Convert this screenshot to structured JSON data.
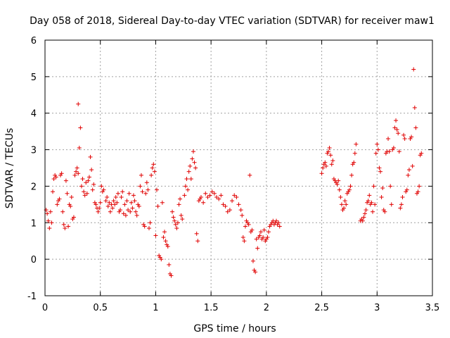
{
  "chart_data": {
    "type": "scatter",
    "title": "Day 058 of 2018, Sidereal Day-to-day VTEC variation (SDTVAR) for receiver maw1",
    "xlabel": "GPS time / hours",
    "ylabel": "SDTVAR / TECUs",
    "xlim": [
      0,
      3.5
    ],
    "ylim": [
      -1,
      6
    ],
    "xticks": [
      0,
      0.5,
      1,
      1.5,
      2,
      2.5,
      3,
      3.5
    ],
    "xtick_labels": [
      "0",
      "0.5",
      "1",
      "1.5",
      "2",
      "2.5",
      "3",
      "3.5"
    ],
    "yticks": [
      -1,
      0,
      1,
      2,
      3,
      4,
      5,
      6
    ],
    "ytick_labels": [
      "-1",
      "0",
      "1",
      "2",
      "3",
      "4",
      "5",
      "6"
    ],
    "grid": true,
    "marker": "+",
    "color": "#e00000",
    "series": [
      {
        "name": "maw1",
        "points": [
          [
            0.01,
            1.35
          ],
          [
            0.02,
            1.25
          ],
          [
            0.03,
            1.05
          ],
          [
            0.04,
            0.85
          ],
          [
            0.05,
            1.3
          ],
          [
            0.06,
            1.0
          ],
          [
            0.07,
            1.85
          ],
          [
            0.08,
            2.2
          ],
          [
            0.09,
            2.3
          ],
          [
            0.1,
            2.25
          ],
          [
            0.11,
            1.5
          ],
          [
            0.12,
            1.6
          ],
          [
            0.13,
            1.65
          ],
          [
            0.14,
            2.3
          ],
          [
            0.15,
            2.35
          ],
          [
            0.16,
            1.3
          ],
          [
            0.17,
            0.95
          ],
          [
            0.18,
            0.85
          ],
          [
            0.19,
            2.15
          ],
          [
            0.2,
            1.8
          ],
          [
            0.21,
            0.9
          ],
          [
            0.22,
            1.5
          ],
          [
            0.23,
            1.45
          ],
          [
            0.24,
            1.7
          ],
          [
            0.25,
            1.1
          ],
          [
            0.26,
            1.15
          ],
          [
            0.27,
            2.3
          ],
          [
            0.28,
            2.4
          ],
          [
            0.29,
            2.5
          ],
          [
            0.3,
            2.35
          ],
          [
            0.3,
            4.25
          ],
          [
            0.31,
            3.05
          ],
          [
            0.32,
            3.6
          ],
          [
            0.33,
            2.0
          ],
          [
            0.34,
            2.2
          ],
          [
            0.35,
            1.85
          ],
          [
            0.36,
            1.75
          ],
          [
            0.37,
            2.1
          ],
          [
            0.38,
            1.8
          ],
          [
            0.39,
            2.15
          ],
          [
            0.4,
            2.25
          ],
          [
            0.41,
            2.8
          ],
          [
            0.42,
            2.45
          ],
          [
            0.43,
            1.9
          ],
          [
            0.44,
            2.05
          ],
          [
            0.45,
            1.55
          ],
          [
            0.46,
            1.5
          ],
          [
            0.47,
            1.4
          ],
          [
            0.48,
            1.3
          ],
          [
            0.49,
            1.4
          ],
          [
            0.5,
            1.55
          ],
          [
            0.51,
            2.0
          ],
          [
            0.52,
            1.85
          ],
          [
            0.53,
            1.9
          ],
          [
            0.55,
            1.6
          ],
          [
            0.56,
            1.7
          ],
          [
            0.57,
            1.45
          ],
          [
            0.58,
            1.55
          ],
          [
            0.59,
            1.3
          ],
          [
            0.6,
            1.5
          ],
          [
            0.61,
            1.4
          ],
          [
            0.62,
            1.6
          ],
          [
            0.63,
            1.5
          ],
          [
            0.64,
            1.7
          ],
          [
            0.65,
            1.55
          ],
          [
            0.66,
            1.8
          ],
          [
            0.67,
            1.3
          ],
          [
            0.68,
            1.35
          ],
          [
            0.69,
            1.7
          ],
          [
            0.7,
            1.85
          ],
          [
            0.71,
            1.25
          ],
          [
            0.72,
            1.5
          ],
          [
            0.73,
            1.2
          ],
          [
            0.74,
            1.6
          ],
          [
            0.75,
            1.35
          ],
          [
            0.76,
            1.8
          ],
          [
            0.77,
            1.3
          ],
          [
            0.78,
            1.55
          ],
          [
            0.79,
            1.4
          ],
          [
            0.8,
            1.75
          ],
          [
            0.81,
            1.6
          ],
          [
            0.82,
            1.3
          ],
          [
            0.83,
            1.2
          ],
          [
            0.84,
            1.5
          ],
          [
            0.85,
            1.45
          ],
          [
            0.86,
            2.0
          ],
          [
            0.87,
            2.3
          ],
          [
            0.88,
            1.85
          ],
          [
            0.89,
            0.95
          ],
          [
            0.9,
            0.9
          ],
          [
            0.91,
            1.8
          ],
          [
            0.92,
            2.1
          ],
          [
            0.93,
            1.9
          ],
          [
            0.94,
            0.85
          ],
          [
            0.95,
            1.0
          ],
          [
            0.96,
            2.3
          ],
          [
            0.97,
            2.5
          ],
          [
            0.98,
            2.6
          ],
          [
            0.99,
            2.4
          ],
          [
            1.0,
            0.65
          ],
          [
            1.01,
            1.9
          ],
          [
            1.02,
            1.45
          ],
          [
            1.03,
            0.1
          ],
          [
            1.04,
            0.05
          ],
          [
            1.05,
            0.0
          ],
          [
            1.06,
            1.55
          ],
          [
            1.07,
            0.6
          ],
          [
            1.08,
            0.75
          ],
          [
            1.09,
            0.5
          ],
          [
            1.1,
            0.4
          ],
          [
            1.11,
            0.35
          ],
          [
            1.12,
            -0.15
          ],
          [
            1.13,
            -0.4
          ],
          [
            1.14,
            -0.45
          ],
          [
            1.15,
            1.3
          ],
          [
            1.16,
            1.15
          ],
          [
            1.17,
            1.05
          ],
          [
            1.18,
            0.95
          ],
          [
            1.19,
            0.85
          ],
          [
            1.2,
            1.0
          ],
          [
            1.21,
            1.5
          ],
          [
            1.22,
            1.65
          ],
          [
            1.23,
            1.2
          ],
          [
            1.24,
            1.1
          ],
          [
            1.26,
            1.75
          ],
          [
            1.27,
            2.0
          ],
          [
            1.28,
            2.2
          ],
          [
            1.29,
            1.9
          ],
          [
            1.3,
            2.4
          ],
          [
            1.31,
            2.55
          ],
          [
            1.32,
            2.2
          ],
          [
            1.33,
            2.75
          ],
          [
            1.34,
            2.95
          ],
          [
            1.35,
            2.65
          ],
          [
            1.36,
            2.5
          ],
          [
            1.37,
            0.7
          ],
          [
            1.38,
            0.5
          ],
          [
            1.39,
            1.6
          ],
          [
            1.4,
            1.65
          ],
          [
            1.41,
            1.7
          ],
          [
            1.43,
            1.55
          ],
          [
            1.45,
            1.8
          ],
          [
            1.47,
            1.7
          ],
          [
            1.49,
            1.75
          ],
          [
            1.51,
            1.85
          ],
          [
            1.53,
            1.8
          ],
          [
            1.55,
            1.7
          ],
          [
            1.57,
            1.65
          ],
          [
            1.59,
            1.75
          ],
          [
            1.61,
            1.5
          ],
          [
            1.63,
            1.45
          ],
          [
            1.65,
            1.3
          ],
          [
            1.67,
            1.35
          ],
          [
            1.69,
            1.6
          ],
          [
            1.71,
            1.75
          ],
          [
            1.73,
            1.7
          ],
          [
            1.75,
            1.5
          ],
          [
            1.77,
            1.35
          ],
          [
            1.78,
            1.2
          ],
          [
            1.79,
            0.6
          ],
          [
            1.8,
            0.5
          ],
          [
            1.81,
            0.9
          ],
          [
            1.82,
            1.05
          ],
          [
            1.83,
            1.0
          ],
          [
            1.84,
            0.95
          ],
          [
            1.85,
            2.3
          ],
          [
            1.86,
            0.75
          ],
          [
            1.87,
            0.8
          ],
          [
            1.88,
            -0.05
          ],
          [
            1.89,
            -0.3
          ],
          [
            1.9,
            -0.35
          ],
          [
            1.91,
            0.55
          ],
          [
            1.92,
            0.3
          ],
          [
            1.93,
            0.6
          ],
          [
            1.94,
            0.65
          ],
          [
            1.95,
            0.75
          ],
          [
            1.96,
            0.55
          ],
          [
            1.97,
            0.6
          ],
          [
            1.98,
            0.8
          ],
          [
            1.99,
            0.5
          ],
          [
            2.0,
            0.55
          ],
          [
            2.01,
            0.6
          ],
          [
            2.02,
            0.75
          ],
          [
            2.03,
            0.9
          ],
          [
            2.04,
            0.95
          ],
          [
            2.05,
            1.0
          ],
          [
            2.06,
            1.05
          ],
          [
            2.07,
            0.95
          ],
          [
            2.08,
            1.0
          ],
          [
            2.09,
            1.05
          ],
          [
            2.1,
            0.95
          ],
          [
            2.11,
            1.0
          ],
          [
            2.12,
            0.9
          ],
          [
            2.5,
            2.35
          ],
          [
            2.51,
            2.5
          ],
          [
            2.52,
            2.6
          ],
          [
            2.53,
            2.65
          ],
          [
            2.54,
            2.55
          ],
          [
            2.55,
            2.9
          ],
          [
            2.56,
            2.95
          ],
          [
            2.57,
            3.05
          ],
          [
            2.58,
            2.85
          ],
          [
            2.59,
            2.6
          ],
          [
            2.6,
            2.7
          ],
          [
            2.61,
            2.2
          ],
          [
            2.62,
            2.15
          ],
          [
            2.63,
            2.1
          ],
          [
            2.64,
            2.05
          ],
          [
            2.65,
            2.15
          ],
          [
            2.66,
            1.9
          ],
          [
            2.67,
            1.7
          ],
          [
            2.68,
            1.5
          ],
          [
            2.69,
            1.35
          ],
          [
            2.7,
            1.4
          ],
          [
            2.71,
            1.6
          ],
          [
            2.72,
            1.5
          ],
          [
            2.73,
            1.8
          ],
          [
            2.74,
            1.85
          ],
          [
            2.75,
            1.9
          ],
          [
            2.76,
            2.0
          ],
          [
            2.77,
            2.3
          ],
          [
            2.78,
            2.6
          ],
          [
            2.79,
            2.65
          ],
          [
            2.8,
            2.9
          ],
          [
            2.81,
            3.15
          ],
          [
            2.85,
            1.05
          ],
          [
            2.86,
            1.1
          ],
          [
            2.87,
            1.05
          ],
          [
            2.88,
            1.15
          ],
          [
            2.89,
            1.25
          ],
          [
            2.9,
            1.35
          ],
          [
            2.91,
            1.55
          ],
          [
            2.92,
            1.6
          ],
          [
            2.93,
            1.75
          ],
          [
            2.94,
            1.5
          ],
          [
            2.95,
            1.55
          ],
          [
            2.96,
            1.3
          ],
          [
            2.97,
            2.0
          ],
          [
            2.98,
            1.5
          ],
          [
            2.99,
            2.9
          ],
          [
            3.0,
            3.15
          ],
          [
            3.01,
            3.0
          ],
          [
            3.02,
            2.5
          ],
          [
            3.03,
            2.4
          ],
          [
            3.04,
            1.7
          ],
          [
            3.05,
            1.95
          ],
          [
            3.06,
            1.35
          ],
          [
            3.07,
            1.3
          ],
          [
            3.08,
            2.9
          ],
          [
            3.09,
            2.95
          ],
          [
            3.1,
            3.3
          ],
          [
            3.11,
            2.95
          ],
          [
            3.12,
            2.0
          ],
          [
            3.13,
            1.5
          ],
          [
            3.14,
            3.0
          ],
          [
            3.15,
            3.05
          ],
          [
            3.16,
            3.6
          ],
          [
            3.17,
            3.8
          ],
          [
            3.18,
            3.55
          ],
          [
            3.19,
            3.45
          ],
          [
            3.2,
            2.95
          ],
          [
            3.21,
            1.4
          ],
          [
            3.22,
            1.5
          ],
          [
            3.23,
            1.7
          ],
          [
            3.24,
            3.4
          ],
          [
            3.25,
            3.3
          ],
          [
            3.26,
            1.85
          ],
          [
            3.27,
            1.9
          ],
          [
            3.28,
            2.3
          ],
          [
            3.29,
            2.45
          ],
          [
            3.3,
            3.3
          ],
          [
            3.31,
            3.35
          ],
          [
            3.32,
            2.55
          ],
          [
            3.33,
            5.2
          ],
          [
            3.34,
            4.15
          ],
          [
            3.35,
            3.6
          ],
          [
            3.36,
            1.8
          ],
          [
            3.37,
            1.85
          ],
          [
            3.38,
            2.0
          ],
          [
            3.39,
            2.85
          ],
          [
            3.4,
            2.9
          ]
        ]
      }
    ]
  }
}
